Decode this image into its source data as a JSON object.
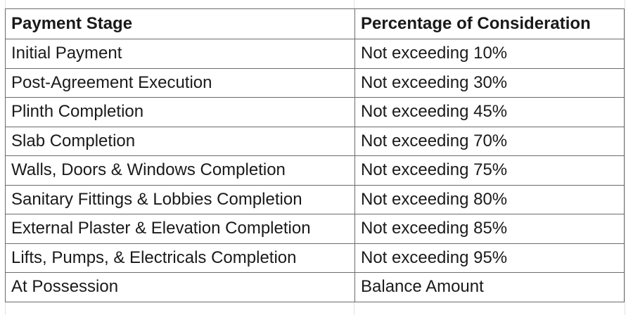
{
  "table": {
    "headers": [
      "Payment Stage",
      "Percentage of Consideration"
    ],
    "rows": [
      [
        "Initial Payment",
        "Not exceeding 10%"
      ],
      [
        "Post-Agreement Execution",
        "Not exceeding 30%"
      ],
      [
        "Plinth Completion",
        "Not exceeding 45%"
      ],
      [
        "Slab Completion",
        "Not exceeding 70%"
      ],
      [
        "Walls, Doors & Windows Completion",
        "Not exceeding 75%"
      ],
      [
        "Sanitary Fittings & Lobbies Completion",
        "Not exceeding 80%"
      ],
      [
        "External Plaster & Elevation Completion",
        "Not exceeding 85%"
      ],
      [
        "Lifts, Pumps, & Electricals Completion",
        "Not exceeding 95%"
      ],
      [
        "At Possession",
        "Balance Amount"
      ]
    ]
  },
  "colors": {
    "border": "#6b6b6b",
    "gridline": "#e2e2e2",
    "text": "#1a1a1a",
    "background": "#ffffff"
  }
}
